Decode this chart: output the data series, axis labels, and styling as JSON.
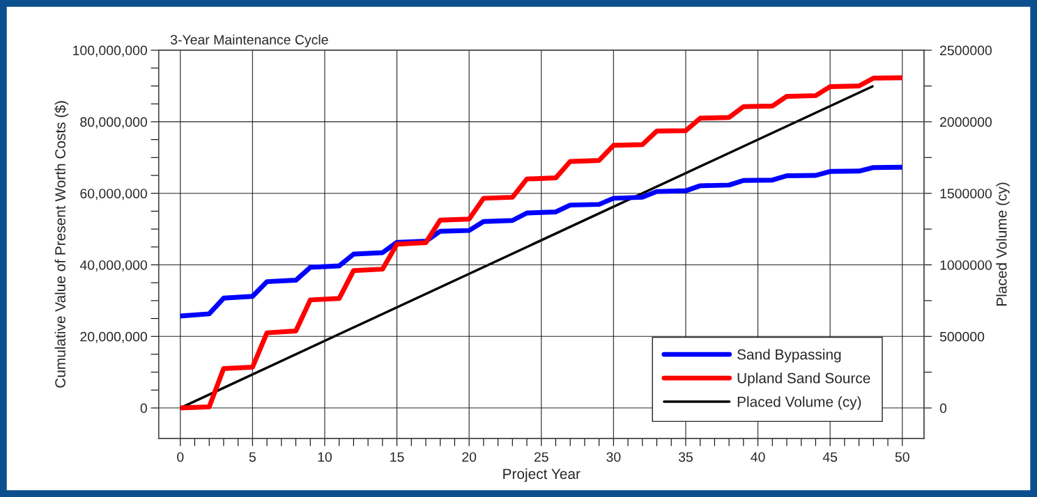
{
  "chart_data": {
    "type": "line",
    "title": "3-Year Maintenance Cycle",
    "xlabel": "Project Year",
    "ylabel": "Cumulative Value of Present Worth Costs ($)",
    "y2label": "Placed Volume (cy)",
    "series": [
      {
        "name": "Sand Bypassing",
        "color": "#0000ff",
        "x": [
          0,
          2,
          3,
          5,
          6,
          8,
          9,
          11,
          12,
          14,
          15,
          17,
          18,
          20,
          21,
          23,
          24,
          26,
          27,
          29,
          30,
          32,
          33,
          35,
          36,
          38,
          39,
          41,
          42,
          44,
          45,
          47,
          48,
          50
        ],
        "values": [
          25700000,
          26300000,
          30700000,
          31200000,
          35300000,
          35700000,
          39300000,
          39700000,
          43000000,
          43400000,
          46300000,
          46600000,
          49400000,
          49600000,
          52100000,
          52400000,
          54500000,
          54800000,
          56700000,
          56900000,
          58600000,
          58900000,
          60500000,
          60700000,
          62100000,
          62300000,
          63600000,
          63700000,
          64900000,
          65000000,
          66100000,
          66200000,
          67200000,
          67300000
        ]
      },
      {
        "name": "Upland Sand Source",
        "color": "#ff0000",
        "x": [
          0,
          2,
          3,
          5,
          6,
          8,
          9,
          11,
          12,
          14,
          15,
          17,
          18,
          20,
          21,
          23,
          24,
          26,
          27,
          29,
          30,
          32,
          33,
          35,
          36,
          38,
          39,
          41,
          42,
          44,
          45,
          47,
          48,
          50
        ],
        "values": [
          0,
          300000,
          11000000,
          11400000,
          21000000,
          21500000,
          30200000,
          30600000,
          38400000,
          38800000,
          45800000,
          46200000,
          52500000,
          52800000,
          58600000,
          58900000,
          64000000,
          64300000,
          68900000,
          69200000,
          73400000,
          73600000,
          77400000,
          77500000,
          81000000,
          81200000,
          84200000,
          84400000,
          87100000,
          87300000,
          89800000,
          90000000,
          92200000,
          92300000
        ]
      },
      {
        "name": "Placed Volume (cy)",
        "color": "#000000",
        "axis": "y2",
        "x": [
          0,
          48
        ],
        "values": [
          0,
          2250000
        ]
      }
    ],
    "xlim": [
      -1.5,
      51.5
    ],
    "xticks": [
      0,
      {
        "value": 1,
        "label": null
      },
      {
        "value": 2,
        "label": null
      },
      {
        "value": 3,
        "label": null
      },
      {
        "value": 4,
        "label": null
      },
      5,
      {
        "value": 6,
        "label": null
      },
      {
        "value": 7,
        "label": null
      },
      {
        "value": 8,
        "label": null
      },
      {
        "value": 9,
        "label": null
      },
      10,
      {
        "value": 11,
        "label": null
      },
      {
        "value": 12,
        "label": null
      },
      {
        "value": 13,
        "label": null
      },
      {
        "value": 14,
        "label": null
      },
      15,
      {
        "value": 16,
        "label": null
      },
      {
        "value": 17,
        "label": null
      },
      {
        "value": 18,
        "label": null
      },
      {
        "value": 19,
        "label": null
      },
      20,
      {
        "value": 21,
        "label": null
      },
      {
        "value": 22,
        "label": null
      },
      {
        "value": 23,
        "label": null
      },
      {
        "value": 24,
        "label": null
      },
      25,
      {
        "value": 26,
        "label": null
      },
      {
        "value": 27,
        "label": null
      },
      {
        "value": 28,
        "label": null
      },
      {
        "value": 29,
        "label": null
      },
      30,
      {
        "value": 31,
        "label": null
      },
      {
        "value": 32,
        "label": null
      },
      {
        "value": 33,
        "label": null
      },
      {
        "value": 34,
        "label": null
      },
      35,
      {
        "value": 36,
        "label": null
      },
      {
        "value": 37,
        "label": null
      },
      {
        "value": 38,
        "label": null
      },
      {
        "value": 39,
        "label": null
      },
      40,
      {
        "value": 41,
        "label": null
      },
      {
        "value": 42,
        "label": null
      },
      {
        "value": 43,
        "label": null
      },
      {
        "value": 44,
        "label": null
      },
      45,
      {
        "value": 46,
        "label": null
      },
      {
        "value": 47,
        "label": null
      },
      {
        "value": 48,
        "label": null
      },
      {
        "value": 49,
        "label": null
      },
      50
    ],
    "ylim": [
      -8500000,
      100000000
    ],
    "yticks": [
      {
        "value": 0,
        "label": "0"
      },
      {
        "value": 5000000,
        "label": null
      },
      {
        "value": 10000000,
        "label": null
      },
      {
        "value": 15000000,
        "label": null
      },
      {
        "value": 20000000,
        "label": "20,000,000"
      },
      {
        "value": 25000000,
        "label": null
      },
      {
        "value": 30000000,
        "label": null
      },
      {
        "value": 35000000,
        "label": null
      },
      {
        "value": 40000000,
        "label": "40,000,000"
      },
      {
        "value": 45000000,
        "label": null
      },
      {
        "value": 50000000,
        "label": null
      },
      {
        "value": 55000000,
        "label": null
      },
      {
        "value": 60000000,
        "label": "60,000,000"
      },
      {
        "value": 65000000,
        "label": null
      },
      {
        "value": 70000000,
        "label": null
      },
      {
        "value": 75000000,
        "label": null
      },
      {
        "value": 80000000,
        "label": "80,000,000"
      },
      {
        "value": 85000000,
        "label": null
      },
      {
        "value": 90000000,
        "label": null
      },
      {
        "value": 95000000,
        "label": null
      },
      {
        "value": 100000000,
        "label": "100,000,000"
      }
    ],
    "y2lim": [
      -212500,
      2500000
    ],
    "y2ticks": [
      0,
      {
        "value": 250000,
        "label": null
      },
      500000,
      {
        "value": 750000,
        "label": null
      },
      1000000,
      {
        "value": 1250000,
        "label": null
      },
      1500000,
      {
        "value": 1750000,
        "label": null
      },
      2000000,
      {
        "value": 2250000,
        "label": null
      },
      2500000
    ],
    "grid": true,
    "legend": "bottom right",
    "marker": "none",
    "line_style": "solid"
  }
}
